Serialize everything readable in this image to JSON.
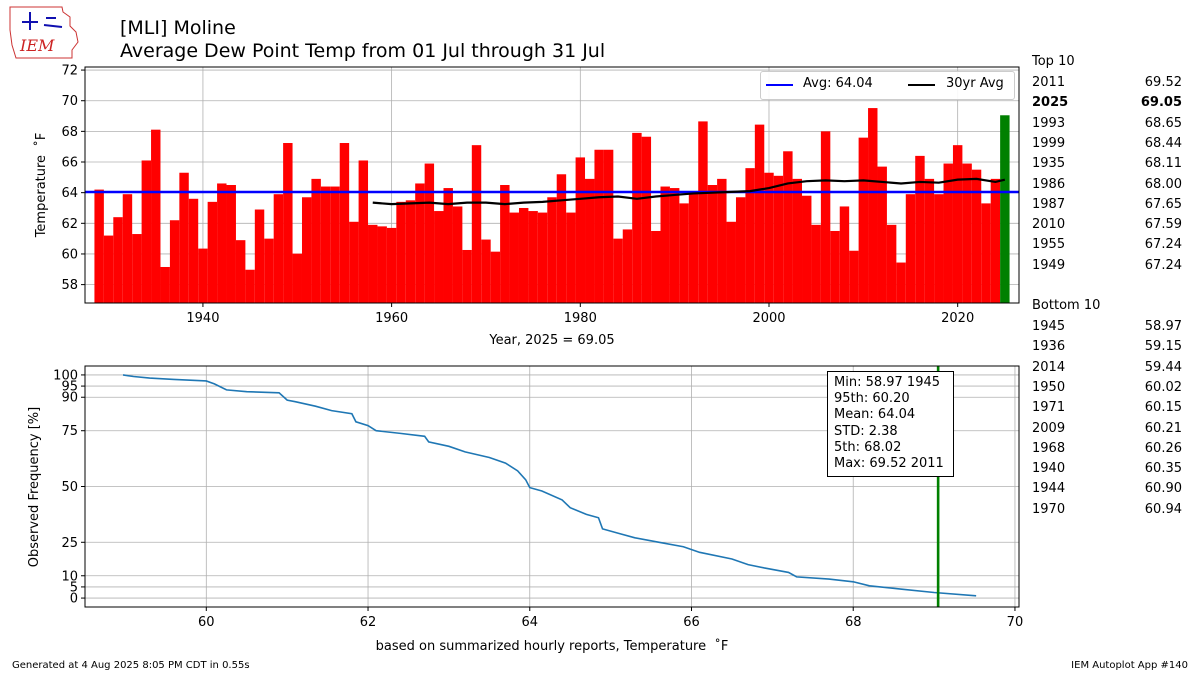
{
  "title": {
    "line1": "[MLI] Moline",
    "line2": "Average Dew Point Temp from 01 Jul through 31 Jul"
  },
  "footer": {
    "left": "Generated at 4 Aug 2025 8:05 PM CDT in 0.55s",
    "right": "IEM Autoplot App #140"
  },
  "logo": {
    "text": "IEM",
    "icon": "iowa-state-outline-icon"
  },
  "top10": {
    "header": "Top 10",
    "rows": [
      {
        "year": "2011",
        "value": "69.52"
      },
      {
        "year": "2025",
        "value": "69.05",
        "bold": true
      },
      {
        "year": "1993",
        "value": "68.65"
      },
      {
        "year": "1999",
        "value": "68.44"
      },
      {
        "year": "1935",
        "value": "68.11"
      },
      {
        "year": "1986",
        "value": "68.00"
      },
      {
        "year": "1987",
        "value": "67.65"
      },
      {
        "year": "2010",
        "value": "67.59"
      },
      {
        "year": "1955",
        "value": "67.24"
      },
      {
        "year": "1949",
        "value": "67.24"
      }
    ]
  },
  "bottom10": {
    "header": "Bottom 10",
    "rows": [
      {
        "year": "1945",
        "value": "58.97"
      },
      {
        "year": "1936",
        "value": "59.15"
      },
      {
        "year": "2014",
        "value": "59.44"
      },
      {
        "year": "1950",
        "value": "60.02"
      },
      {
        "year": "1971",
        "value": "60.15"
      },
      {
        "year": "2009",
        "value": "60.21"
      },
      {
        "year": "1968",
        "value": "60.26"
      },
      {
        "year": "1940",
        "value": "60.35"
      },
      {
        "year": "1944",
        "value": "60.90"
      },
      {
        "year": "1970",
        "value": "60.94"
      }
    ]
  },
  "chart_data": [
    {
      "type": "bar",
      "ylabel": "Temperature $^\\circ$F",
      "xlabel": "Year, 2025 = 69.05",
      "xlim": [
        1927.5,
        2026.5
      ],
      "ylim": [
        56.8,
        72.2
      ],
      "x_ticks": [
        1940,
        1960,
        1980,
        2000,
        2020
      ],
      "y_ticks": [
        58,
        60,
        62,
        64,
        66,
        68,
        70,
        72
      ],
      "grid": true,
      "legend_placement": "top-right",
      "highlight_year": 2025,
      "colors": {
        "bars": "#ff0000",
        "highlight": "#008000",
        "avg": "#0000ff",
        "avg30": "#000000"
      },
      "years_start": 1929,
      "values": [
        64.2,
        61.2,
        62.4,
        63.9,
        61.3,
        66.1,
        68.11,
        59.15,
        62.2,
        65.3,
        63.6,
        60.35,
        63.4,
        64.6,
        64.5,
        60.9,
        58.97,
        62.9,
        61.0,
        63.9,
        67.24,
        60.02,
        63.7,
        64.9,
        64.4,
        64.4,
        67.24,
        62.1,
        66.1,
        61.9,
        61.8,
        61.7,
        63.4,
        63.5,
        64.6,
        65.9,
        62.8,
        64.3,
        63.1,
        60.26,
        67.1,
        60.94,
        60.15,
        64.5,
        62.7,
        63.0,
        62.8,
        62.7,
        63.7,
        65.2,
        62.7,
        66.3,
        64.9,
        66.8,
        66.8,
        61.0,
        61.6,
        67.9,
        67.65,
        61.5,
        64.4,
        64.3,
        63.3,
        64.0,
        68.65,
        64.5,
        64.9,
        62.1,
        63.7,
        65.6,
        68.44,
        65.3,
        65.1,
        66.7,
        64.9,
        63.8,
        61.9,
        68.0,
        61.5,
        63.1,
        60.21,
        67.59,
        69.52,
        65.7,
        61.9,
        59.44,
        63.9,
        66.4,
        64.9,
        63.9,
        65.9,
        67.1,
        65.9,
        65.5,
        63.3,
        64.9,
        69.05
      ],
      "series": [
        {
          "name": "Avg: 64.04",
          "type": "hline",
          "value": 64.04
        },
        {
          "name": "30yr Avg",
          "type": "line",
          "x": [
            1958,
            1960,
            1962,
            1964,
            1966,
            1968,
            1970,
            1972,
            1974,
            1976,
            1978,
            1980,
            1982,
            1984,
            1986,
            1988,
            1990,
            1992,
            1994,
            1996,
            1998,
            2000,
            2002,
            2004,
            2006,
            2008,
            2010,
            2012,
            2014,
            2016,
            2018,
            2020,
            2022,
            2024,
            2025
          ],
          "y": [
            63.35,
            63.25,
            63.3,
            63.35,
            63.25,
            63.35,
            63.35,
            63.25,
            63.35,
            63.4,
            63.5,
            63.6,
            63.7,
            63.75,
            63.6,
            63.75,
            63.85,
            63.95,
            64.0,
            64.05,
            64.1,
            64.3,
            64.6,
            64.75,
            64.8,
            64.75,
            64.8,
            64.7,
            64.6,
            64.7,
            64.65,
            64.85,
            64.9,
            64.7,
            64.85
          ]
        }
      ]
    },
    {
      "type": "line",
      "ylabel": "Observed Frequency [%]",
      "xlabel": "based on summarized hourly reports, Temperature $^\\circ$F",
      "xlim": [
        58.5,
        70.05
      ],
      "ylim": [
        -4,
        104
      ],
      "x_ticks": [
        60,
        62,
        64,
        66,
        68,
        70
      ],
      "y_ticks": [
        0,
        5,
        10,
        25,
        50,
        75,
        90,
        95,
        100
      ],
      "grid": true,
      "colors": {
        "line": "#1f77b4",
        "marker": "#008000"
      },
      "vline": 69.05,
      "series": [
        {
          "name": "",
          "x": [
            58.97,
            59.1,
            59.3,
            59.6,
            60.0,
            60.1,
            60.25,
            60.5,
            60.9,
            61.0,
            61.1,
            61.35,
            61.55,
            61.8,
            61.85,
            62.0,
            62.1,
            62.4,
            62.7,
            62.75,
            63.0,
            63.2,
            63.5,
            63.7,
            63.85,
            63.95,
            64.0,
            64.15,
            64.4,
            64.5,
            64.7,
            64.85,
            64.9,
            65.1,
            65.3,
            65.6,
            65.9,
            66.1,
            66.5,
            66.7,
            66.9,
            67.2,
            67.3,
            67.7,
            68.0,
            68.2,
            68.6,
            69.0,
            69.52
          ],
          "y": [
            100,
            99.3,
            98.6,
            98.0,
            97.3,
            96.0,
            93.3,
            92.5,
            92.0,
            88.7,
            88.0,
            86.0,
            84.0,
            82.6,
            79.0,
            77.3,
            75.0,
            73.8,
            72.5,
            70.0,
            68.0,
            65.5,
            63.0,
            60.5,
            57.0,
            53.0,
            49.5,
            48.0,
            44.0,
            40.5,
            37.5,
            36.0,
            31.0,
            29.0,
            27.0,
            25.0,
            23.0,
            20.5,
            17.5,
            15.0,
            13.5,
            11.5,
            9.5,
            8.5,
            7.3,
            5.5,
            4.0,
            2.5,
            1.0
          ]
        }
      ],
      "stats_box": [
        "Min: 58.97 1945",
        "95th: 60.20",
        "Mean: 64.04",
        "STD: 2.38",
        "5th: 68.02",
        "Max: 69.52 2011"
      ]
    }
  ]
}
